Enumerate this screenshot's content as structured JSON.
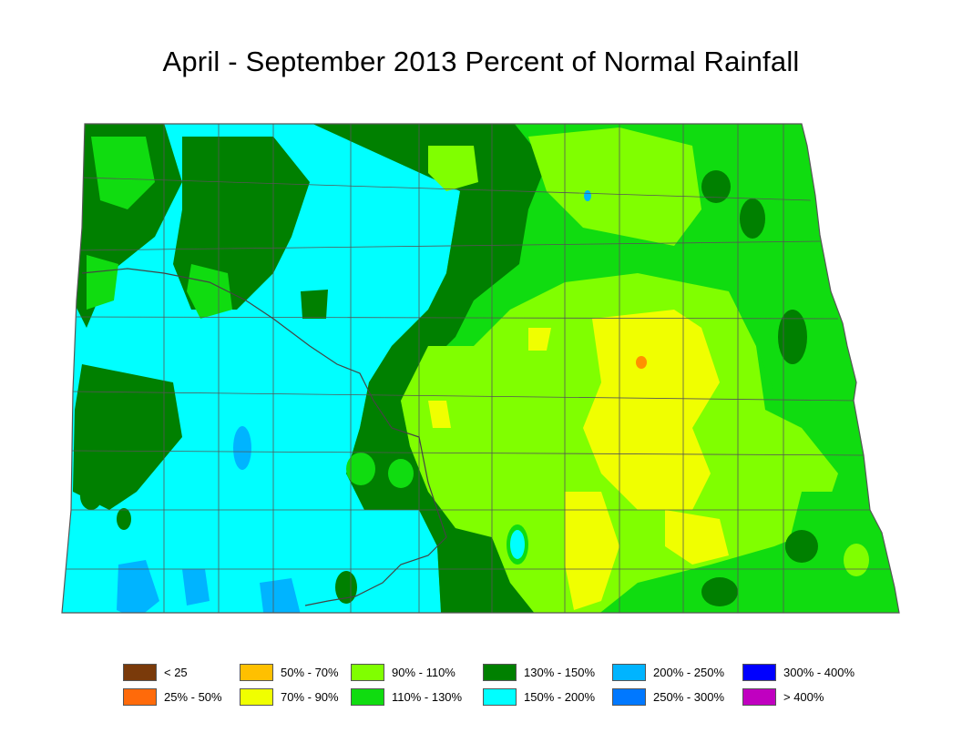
{
  "title": "April - September 2013 Percent of Normal Rainfall",
  "legend": [
    {
      "label": "< 25",
      "color": "#7a3a0a"
    },
    {
      "label": "25% - 50%",
      "color": "#ff6a0a"
    },
    {
      "label": "50% - 70%",
      "color": "#ffc000"
    },
    {
      "label": "70% - 90%",
      "color": "#f0ff00"
    },
    {
      "label": "90% - 110%",
      "color": "#80ff00"
    },
    {
      "label": "110% - 130%",
      "color": "#10dc10"
    },
    {
      "label": "130% - 150%",
      "color": "#008000"
    },
    {
      "label": "150% - 200%",
      "color": "#00ffff"
    },
    {
      "label": "200% - 250%",
      "color": "#00b4ff"
    },
    {
      "label": "250% - 300%",
      "color": "#0078ff"
    },
    {
      "label": "300% - 400%",
      "color": "#0000ff"
    },
    {
      "label": "> 400%",
      "color": "#c000c0"
    }
  ],
  "map_colors": {
    "border": "#555555",
    "river": "#444444"
  }
}
